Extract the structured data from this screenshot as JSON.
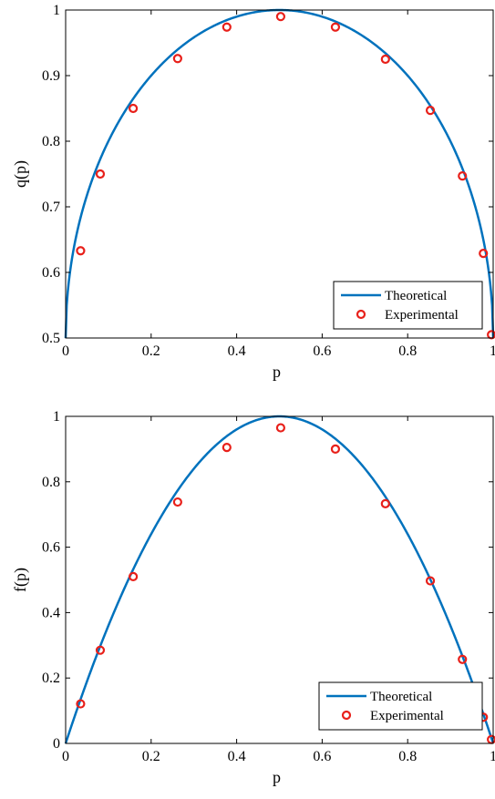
{
  "chart_data": [
    {
      "type": "line",
      "xlabel": "p",
      "ylabel": "q(p)",
      "xlim": [
        0,
        1
      ],
      "ylim": [
        0.5,
        1
      ],
      "xticks": [
        "0",
        "0.2",
        "0.4",
        "0.6",
        "0.8",
        "1"
      ],
      "yticks": [
        "0.5",
        "0.6",
        "0.7",
        "0.8",
        "0.9",
        "1"
      ],
      "legend_position": "bottom-right",
      "grid": false,
      "series": [
        {
          "name": "Theoretical",
          "style": "line",
          "color": "#0072BD",
          "formula": "0.5 + sqrt(p*(1-p))"
        },
        {
          "name": "Experimental",
          "style": "marker-circle",
          "color": "#E8201A",
          "x": [
            0.035,
            0.081,
            0.158,
            0.262,
            0.377,
            0.503,
            0.631,
            0.748,
            0.853,
            0.928,
            0.977,
            0.996
          ],
          "y": [
            0.633,
            0.75,
            0.85,
            0.926,
            0.974,
            0.99,
            0.974,
            0.925,
            0.847,
            0.747,
            0.629,
            0.505
          ]
        }
      ]
    },
    {
      "type": "line",
      "xlabel": "p",
      "ylabel": "f(p)",
      "xlim": [
        0,
        1
      ],
      "ylim": [
        0,
        1
      ],
      "xticks": [
        "0",
        "0.2",
        "0.4",
        "0.6",
        "0.8",
        "1"
      ],
      "yticks": [
        "0",
        "0.2",
        "0.4",
        "0.6",
        "0.8",
        "1"
      ],
      "legend_position": "bottom-right",
      "grid": false,
      "series": [
        {
          "name": "Theoretical",
          "style": "line",
          "color": "#0072BD",
          "formula": "4*p*(1-p)"
        },
        {
          "name": "Experimental",
          "style": "marker-circle",
          "color": "#E8201A",
          "x": [
            0.035,
            0.081,
            0.158,
            0.262,
            0.377,
            0.503,
            0.631,
            0.748,
            0.853,
            0.928,
            0.977,
            0.996
          ],
          "y": [
            0.121,
            0.285,
            0.51,
            0.738,
            0.905,
            0.965,
            0.9,
            0.733,
            0.497,
            0.257,
            0.08,
            0.012
          ]
        }
      ]
    }
  ]
}
